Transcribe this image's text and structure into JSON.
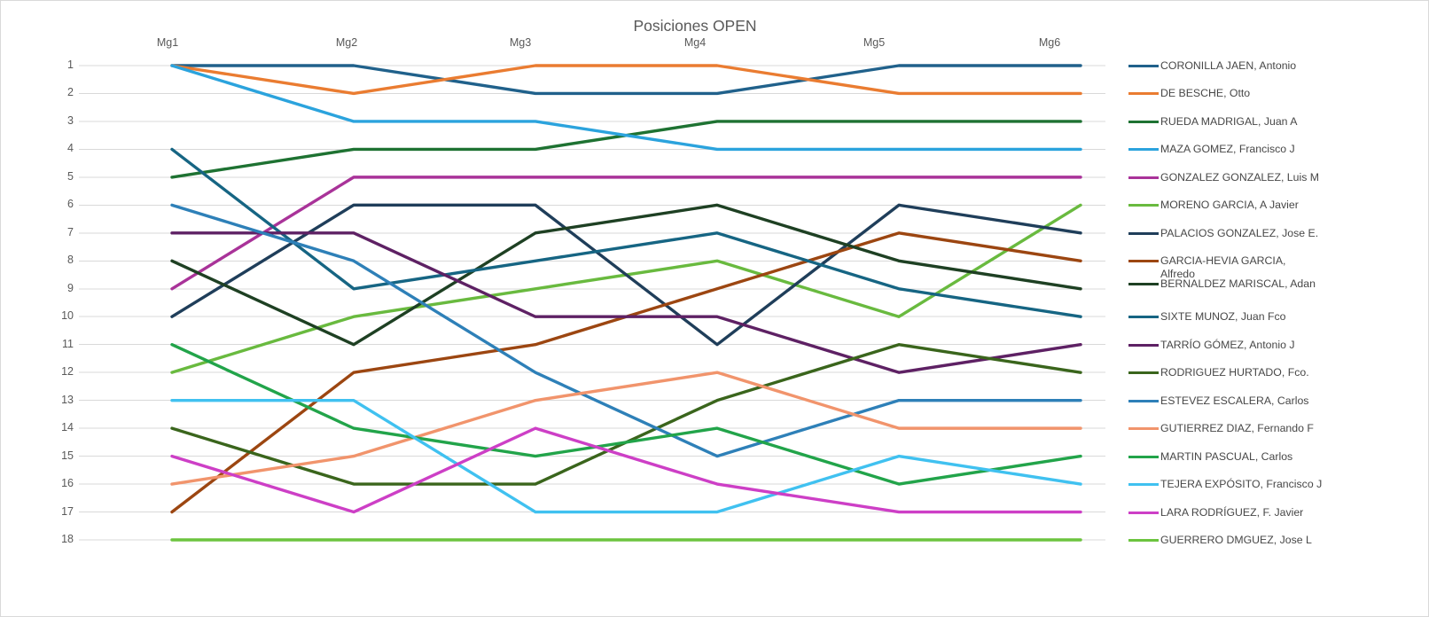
{
  "title": "Posiciones OPEN",
  "axis": {
    "x_ticks": [
      "Mg1",
      "Mg2",
      "Mg3",
      "Mg4",
      "Mg5",
      "Mg6"
    ],
    "y_ticks": [
      "1",
      "2",
      "3",
      "4",
      "5",
      "6",
      "7",
      "8",
      "9",
      "10",
      "11",
      "12",
      "13",
      "14",
      "15",
      "16",
      "17",
      "18"
    ]
  },
  "colors": {
    "gridline": "#d9d9d9",
    "axis_text": "#595959",
    "legend_text": "#474747"
  },
  "chart_data": {
    "type": "line",
    "title": "Posiciones OPEN",
    "categories": [
      "Mg1",
      "Mg2",
      "Mg3",
      "Mg4",
      "Mg5",
      "Mg6"
    ],
    "xlabel": "",
    "ylabel": "",
    "ylim": [
      1,
      18
    ],
    "y_axis_inverted": true,
    "grid": "horizontal",
    "legend_position": "right",
    "series": [
      {
        "name": "CORONILLA JAEN, Antonio",
        "color": "#20618B",
        "values": [
          1,
          1,
          2,
          2,
          1,
          1
        ]
      },
      {
        "name": "DE BESCHE, Otto",
        "color": "#EA7C31",
        "values": [
          1,
          2,
          1,
          1,
          2,
          2
        ]
      },
      {
        "name": "RUEDA MADRIGAL, Juan A",
        "color": "#1E7232",
        "values": [
          5,
          4,
          4,
          3,
          3,
          3
        ]
      },
      {
        "name": "MAZA GOMEZ, Francisco J",
        "color": "#2BA3DD",
        "values": [
          1,
          3,
          3,
          4,
          4,
          4
        ]
      },
      {
        "name": "GONZALEZ GONZALEZ, Luis M",
        "color": "#A93399",
        "values": [
          9,
          5,
          5,
          5,
          5,
          5
        ]
      },
      {
        "name": "MORENO GARCIA, A Javier",
        "color": "#69BA3F",
        "values": [
          12,
          10,
          9,
          8,
          10,
          6
        ]
      },
      {
        "name": "PALACIOS GONZALEZ, Jose E.",
        "color": "#1F3E5A",
        "values": [
          10,
          6,
          6,
          11,
          6,
          7
        ]
      },
      {
        "name": "GARCIA-HEVIA GARCIA, Alfredo",
        "color": "#9C4611",
        "values": [
          17,
          12,
          11,
          9,
          7,
          8
        ]
      },
      {
        "name": "BERNALDEZ MARISCAL, Adan",
        "color": "#1E4023",
        "values": [
          8,
          11,
          7,
          6,
          8,
          9
        ]
      },
      {
        "name": "SIXTE MUNOZ, Juan Fco",
        "color": "#166583",
        "values": [
          4,
          9,
          8,
          7,
          9,
          10
        ]
      },
      {
        "name": "TARRÍO GÓMEZ, Antonio J",
        "color": "#5E2164",
        "values": [
          7,
          7,
          10,
          10,
          12,
          11
        ]
      },
      {
        "name": "RODRIGUEZ HURTADO, Fco.",
        "color": "#3A651C",
        "values": [
          14,
          16,
          16,
          13,
          11,
          12
        ]
      },
      {
        "name": "ESTEVEZ ESCALERA, Carlos",
        "color": "#2E80B8",
        "values": [
          6,
          8,
          12,
          15,
          13,
          13
        ]
      },
      {
        "name": "GUTIERREZ DIAZ, Fernando F",
        "color": "#F1946C",
        "values": [
          16,
          15,
          13,
          12,
          14,
          14
        ]
      },
      {
        "name": "MARTIN PASCUAL, Carlos",
        "color": "#22A44A",
        "values": [
          11,
          14,
          15,
          14,
          16,
          15
        ]
      },
      {
        "name": "TEJERA EXPÓSITO, Francisco J",
        "color": "#40C1F0",
        "values": [
          13,
          13,
          17,
          17,
          15,
          16
        ]
      },
      {
        "name": "LARA RODRÍGUEZ, F. Javier",
        "color": "#CD3FC6",
        "values": [
          15,
          17,
          14,
          16,
          17,
          17
        ]
      },
      {
        "name": "GUERRERO DMGUEZ, Jose L",
        "color": "#6CC43F",
        "values": [
          18,
          18,
          18,
          18,
          18,
          18
        ]
      }
    ]
  }
}
